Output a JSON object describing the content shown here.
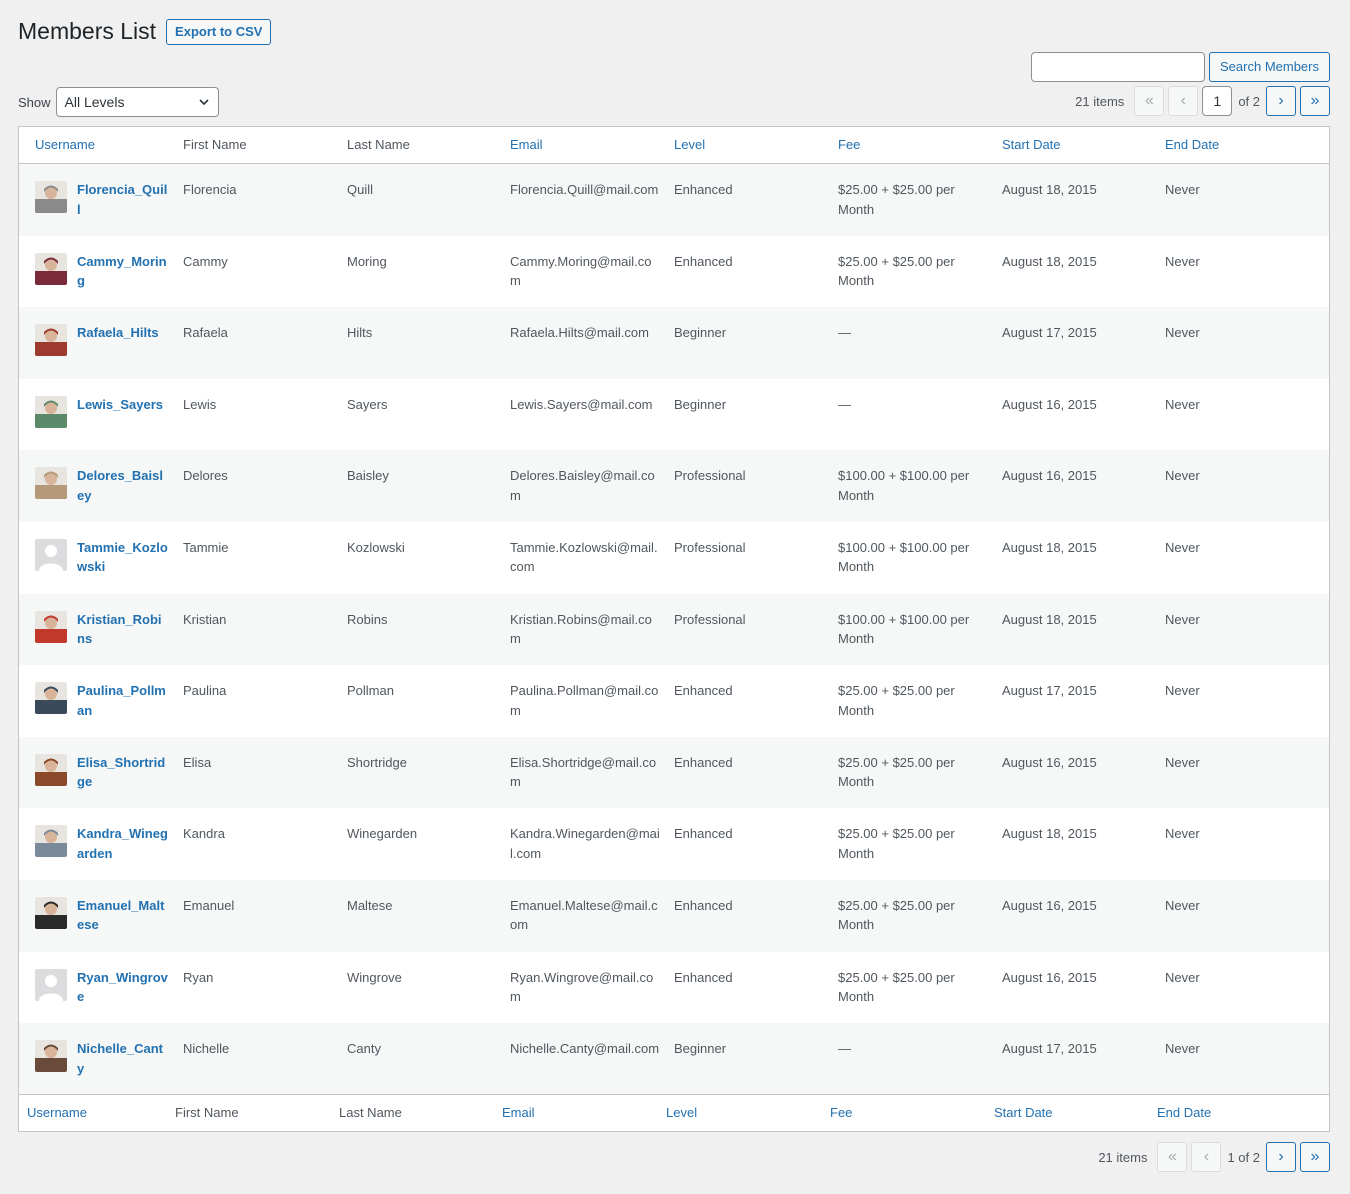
{
  "page": {
    "title": "Members List",
    "export_label": "Export to CSV"
  },
  "search": {
    "value": "",
    "button_label": "Search Members"
  },
  "filter": {
    "show_label": "Show",
    "level_selected": "All Levels"
  },
  "pagination": {
    "items_text": "21 items",
    "current_page": "1",
    "of_text": "of 2",
    "bottom_text": "1 of 2",
    "first": "«",
    "prev": "‹",
    "next": "›",
    "last": "»"
  },
  "columns": [
    "Username",
    "First Name",
    "Last Name",
    "Email",
    "Level",
    "Fee",
    "Start Date",
    "End Date"
  ],
  "members": [
    {
      "username": "Florencia_Quill",
      "first": "Florencia",
      "last": "Quill",
      "email": "Florencia.Quill@mail.com",
      "level": "Enhanced",
      "fee": "$25.00 + $25.00 per Month",
      "start": "August 18, 2015",
      "end": "Never",
      "avatar": "photo",
      "avatar_color": "#8a8a8a"
    },
    {
      "username": "Cammy_Moring",
      "first": "Cammy",
      "last": "Moring",
      "email": "Cammy.Moring@mail.com",
      "level": "Enhanced",
      "fee": "$25.00 + $25.00 per Month",
      "start": "August 18, 2015",
      "end": "Never",
      "avatar": "photo",
      "avatar_color": "#7a2a3a"
    },
    {
      "username": "Rafaela_Hilts",
      "first": "Rafaela",
      "last": "Hilts",
      "email": "Rafaela.Hilts@mail.com",
      "level": "Beginner",
      "fee": "—",
      "start": "August 17, 2015",
      "end": "Never",
      "avatar": "photo",
      "avatar_color": "#9c3b2e"
    },
    {
      "username": "Lewis_Sayers",
      "first": "Lewis",
      "last": "Sayers",
      "email": "Lewis.Sayers@mail.com",
      "level": "Beginner",
      "fee": "—",
      "start": "August 16, 2015",
      "end": "Never",
      "avatar": "photo",
      "avatar_color": "#5a8a6a"
    },
    {
      "username": "Delores_Baisley",
      "first": "Delores",
      "last": "Baisley",
      "email": "Delores.Baisley@mail.com",
      "level": "Professional",
      "fee": "$100.00 + $100.00 per Month",
      "start": "August 16, 2015",
      "end": "Never",
      "avatar": "photo",
      "avatar_color": "#b49a78"
    },
    {
      "username": "Tammie_Kozlowski",
      "first": "Tammie",
      "last": "Kozlowski",
      "email": "Tammie.Kozlowski@mail.com",
      "level": "Professional",
      "fee": "$100.00 + $100.00 per Month",
      "start": "August 18, 2015",
      "end": "Never",
      "avatar": "default",
      "avatar_color": "#dcdcde"
    },
    {
      "username": "Kristian_Robins",
      "first": "Kristian",
      "last": "Robins",
      "email": "Kristian.Robins@mail.com",
      "level": "Professional",
      "fee": "$100.00 + $100.00 per Month",
      "start": "August 18, 2015",
      "end": "Never",
      "avatar": "photo",
      "avatar_color": "#c0392b"
    },
    {
      "username": "Paulina_Pollman",
      "first": "Paulina",
      "last": "Pollman",
      "email": "Paulina.Pollman@mail.com",
      "level": "Enhanced",
      "fee": "$25.00 + $25.00 per Month",
      "start": "August 17, 2015",
      "end": "Never",
      "avatar": "photo",
      "avatar_color": "#3a4a5a"
    },
    {
      "username": "Elisa_Shortridge",
      "first": "Elisa",
      "last": "Shortridge",
      "email": "Elisa.Shortridge@mail.com",
      "level": "Enhanced",
      "fee": "$25.00 + $25.00 per Month",
      "start": "August 16, 2015",
      "end": "Never",
      "avatar": "photo",
      "avatar_color": "#8a4a2a"
    },
    {
      "username": "Kandra_Winegarden",
      "first": "Kandra",
      "last": "Winegarden",
      "email": "Kandra.Winegarden@mail.com",
      "level": "Enhanced",
      "fee": "$25.00 + $25.00 per Month",
      "start": "August 18, 2015",
      "end": "Never",
      "avatar": "photo",
      "avatar_color": "#7a8a9a"
    },
    {
      "username": "Emanuel_Maltese",
      "first": "Emanuel",
      "last": "Maltese",
      "email": "Emanuel.Maltese@mail.com",
      "level": "Enhanced",
      "fee": "$25.00 + $25.00 per Month",
      "start": "August 16, 2015",
      "end": "Never",
      "avatar": "photo",
      "avatar_color": "#2a2a2a"
    },
    {
      "username": "Ryan_Wingrove",
      "first": "Ryan",
      "last": "Wingrove",
      "email": "Ryan.Wingrove@mail.com",
      "level": "Enhanced",
      "fee": "$25.00 + $25.00 per Month",
      "start": "August 16, 2015",
      "end": "Never",
      "avatar": "default",
      "avatar_color": "#dcdcde"
    },
    {
      "username": "Nichelle_Canty",
      "first": "Nichelle",
      "last": "Canty",
      "email": "Nichelle.Canty@mail.com",
      "level": "Beginner",
      "fee": "—",
      "start": "August 17, 2015",
      "end": "Never",
      "avatar": "photo",
      "avatar_color": "#6a4a3a"
    }
  ],
  "colors": {
    "link": "#2271b1",
    "text": "#50575e",
    "border": "#c3c4c7",
    "alt_row": "#f6f7f7"
  }
}
